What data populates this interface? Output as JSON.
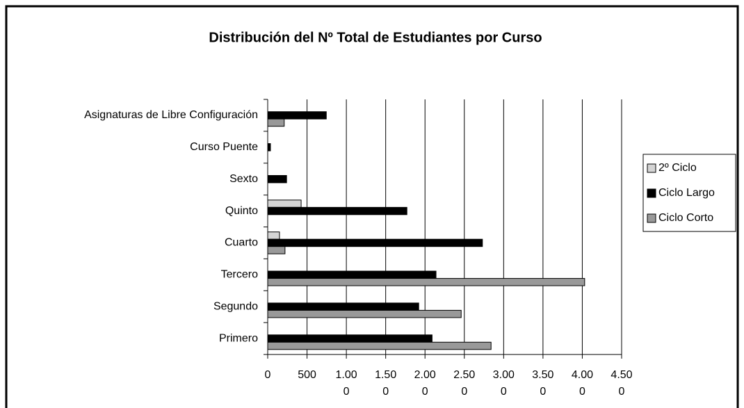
{
  "chart_data": {
    "type": "bar",
    "orientation": "horizontal",
    "title": "Distribución del Nº Total de Estudiantes por Curso",
    "categories": [
      "Primero",
      "Segundo",
      "Tercero",
      "Cuarto",
      "Quinto",
      "Sexto",
      "Curso Puente",
      "Asignaturas de Libre Configuración"
    ],
    "series": [
      {
        "name": "2º Ciclo",
        "color": "#d4d4d4",
        "values": [
          null,
          null,
          null,
          150,
          425,
          null,
          null,
          null
        ]
      },
      {
        "name": "Ciclo Largo",
        "color": "#000000",
        "values": [
          2090,
          1920,
          2140,
          2730,
          1770,
          240,
          35,
          745
        ]
      },
      {
        "name": "Ciclo Corto",
        "color": "#999999",
        "values": [
          2840,
          2460,
          4030,
          220,
          null,
          null,
          null,
          210
        ]
      }
    ],
    "xlim": [
      0,
      4500
    ],
    "xticks": [
      0,
      500,
      {
        "value": 1000,
        "label": "1.000"
      },
      {
        "value": 1500,
        "label": "1.500"
      },
      {
        "value": 2000,
        "label": "2.000"
      },
      {
        "value": 2500,
        "label": "2.500"
      },
      {
        "value": 3000,
        "label": "3.000"
      },
      {
        "value": 3500,
        "label": "3.500"
      },
      {
        "value": 4000,
        "label": "4.000"
      },
      {
        "value": 4500,
        "label": "4.500"
      }
    ],
    "grid": true,
    "legend": "right"
  }
}
